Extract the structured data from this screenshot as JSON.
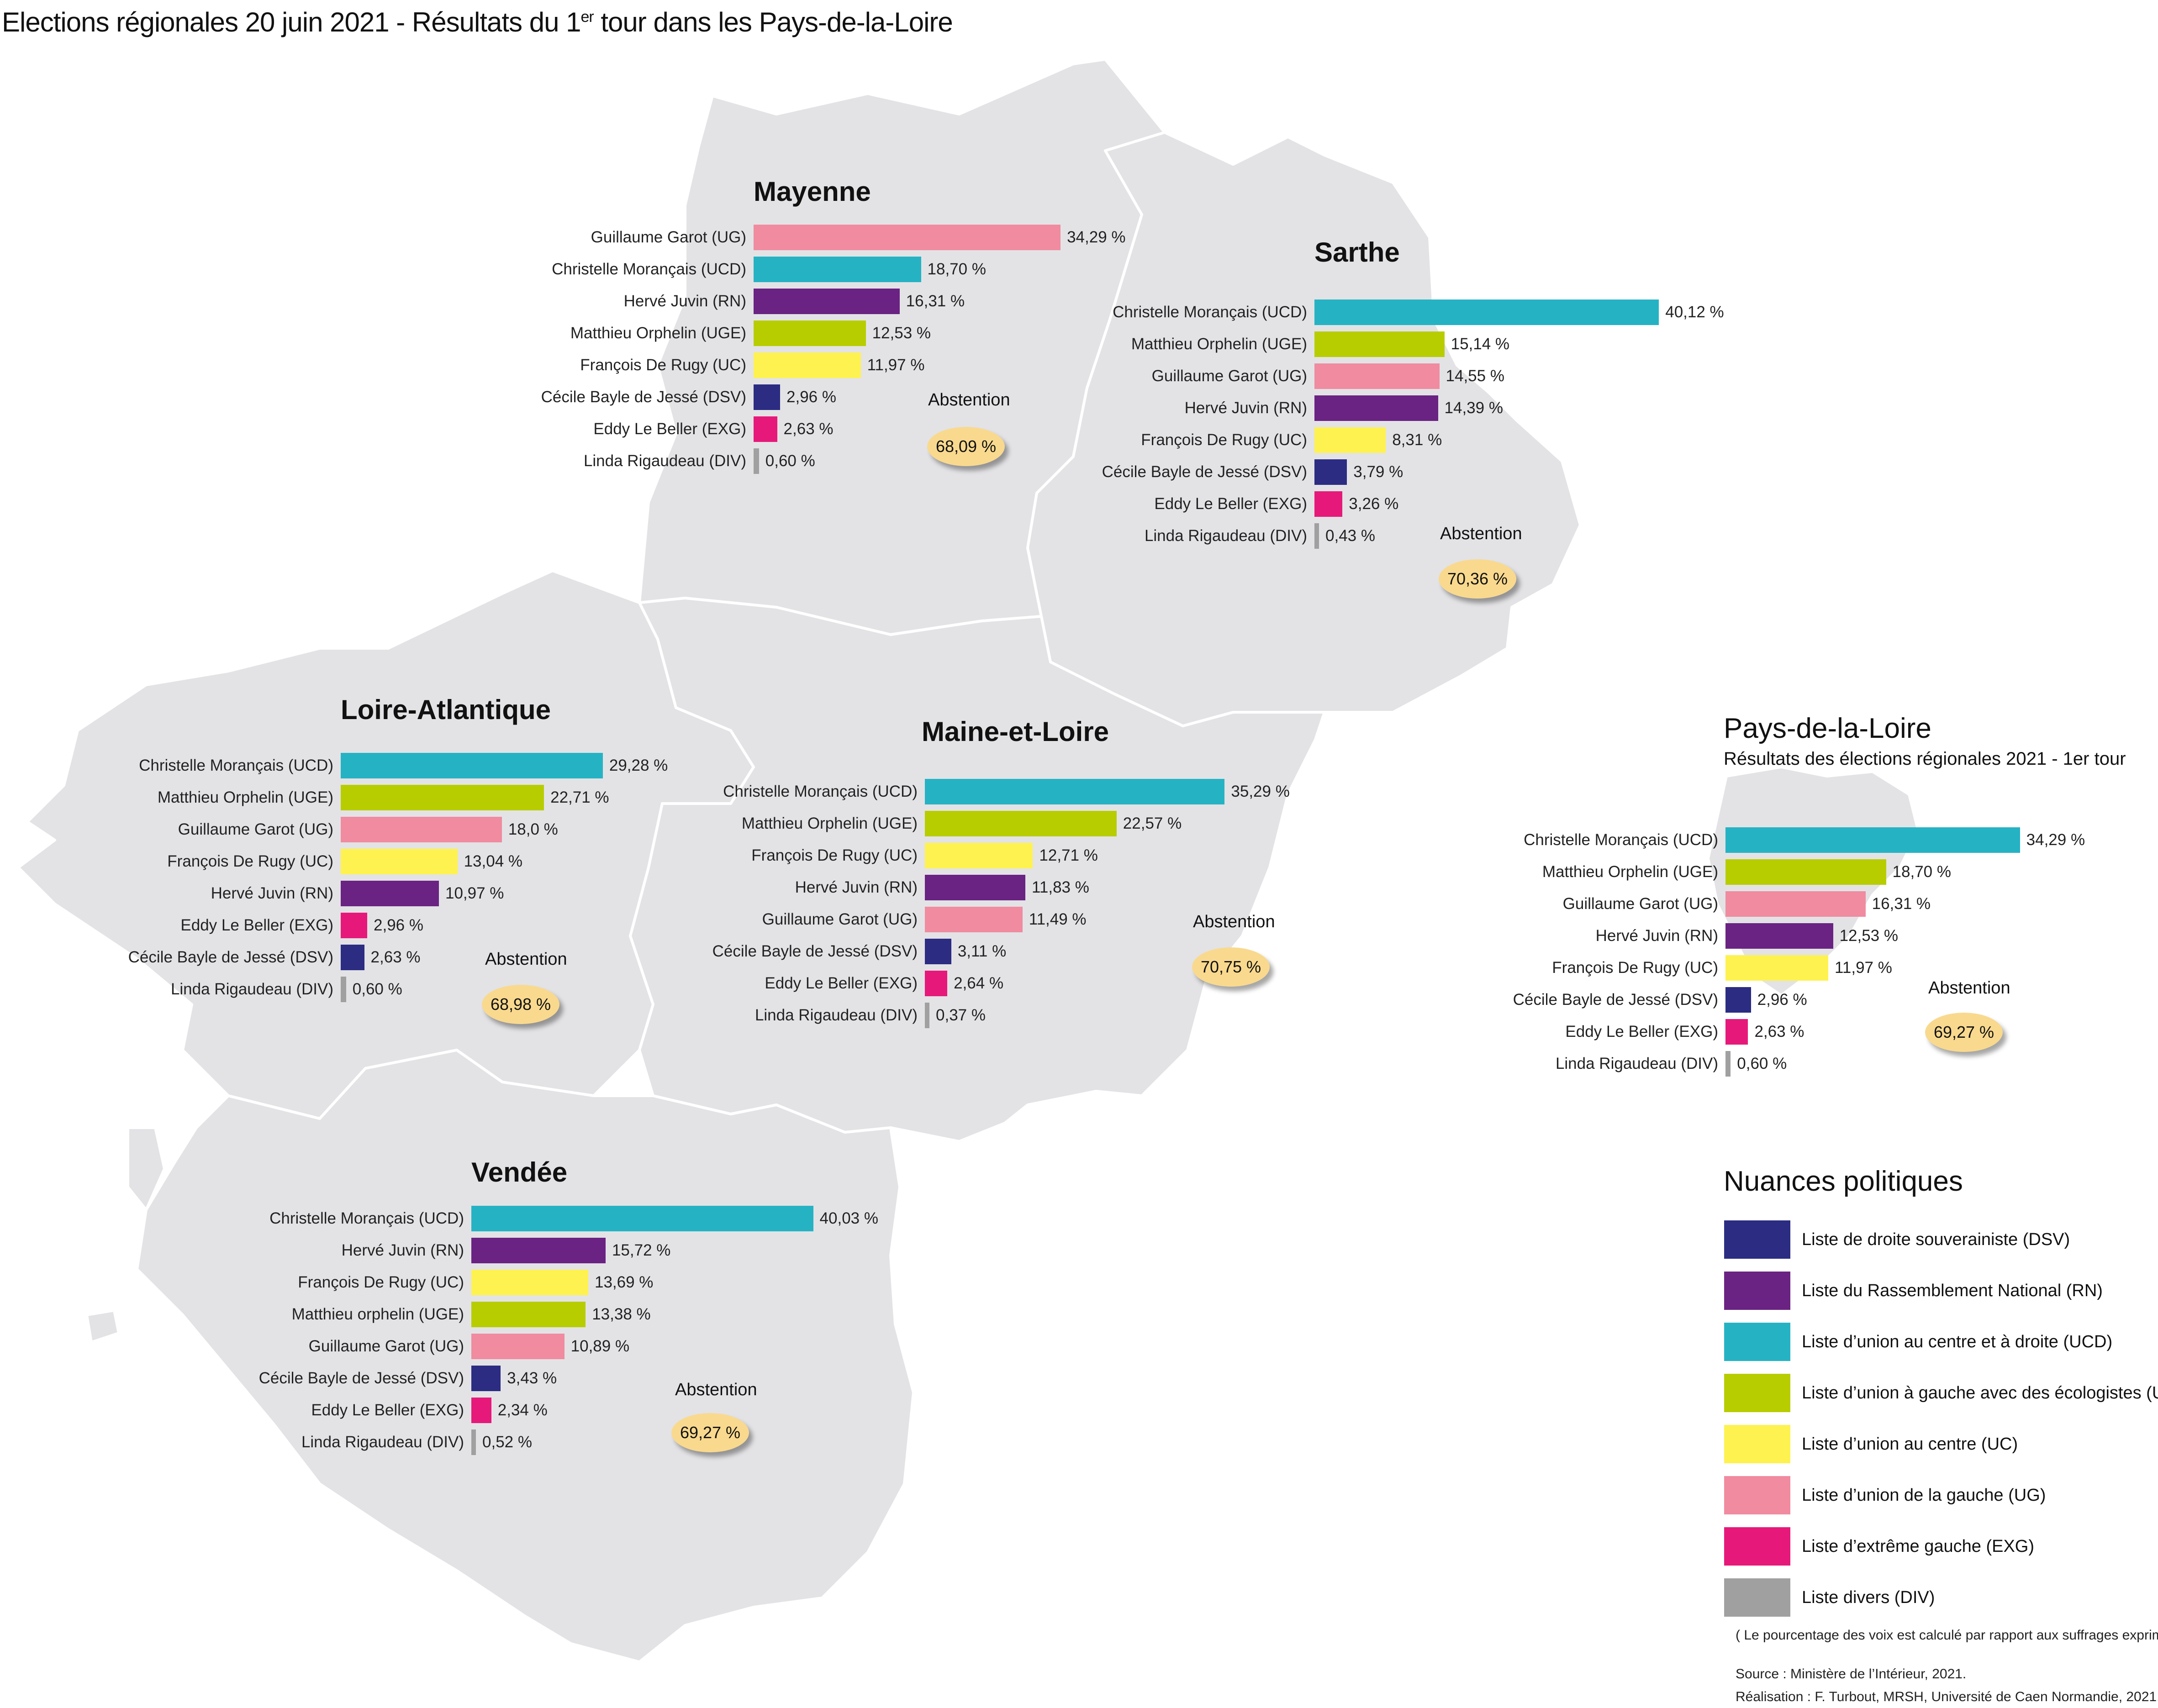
{
  "title_main": "Elections régionales 20 juin 2021 - Résultats du 1",
  "title_sup": "er",
  "title_rest": " tour dans les Pays-de-la-Loire",
  "colors": {
    "DSV": "#2b2c82",
    "RN": "#6a2382",
    "UCD": "#25b3c4",
    "UGE": "#b7cd00",
    "UC": "#fef250",
    "UG": "#f08ba0",
    "EXG": "#e6197a",
    "DIV": "#a0a0a0",
    "map_fill": "#e3e3e6",
    "map_stroke": "#ffffff",
    "abstention_badge": "#f9d98e"
  },
  "chart_data": [
    {
      "type": "bar",
      "title": "Mayenne",
      "categories": [
        "Guillaume Garot (UG)",
        "Christelle Morançais (UCD)",
        "Hervé Juvin (RN)",
        "Matthieu Orphelin (UGE)",
        "François De Rugy (UC)",
        "Cécile Bayle de Jessé (DSV)",
        "Eddy Le Beller (EXG)",
        "Linda Rigaudeau (DIV)"
      ],
      "nuances": [
        "UG",
        "UCD",
        "RN",
        "UGE",
        "UC",
        "DSV",
        "EXG",
        "DIV"
      ],
      "values": [
        34.29,
        18.7,
        16.31,
        12.53,
        11.97,
        2.96,
        2.63,
        0.6
      ],
      "value_labels": [
        "34,29 %",
        "18,70 %",
        "16,31 %",
        "12,53 %",
        "11,97 %",
        "2,96 %",
        "2,63 %",
        "0,60 %"
      ],
      "abstention_label": "Abstention",
      "abstention": "68,09 %"
    },
    {
      "type": "bar",
      "title": "Sarthe",
      "categories": [
        "Christelle Morançais (UCD)",
        "Matthieu Orphelin (UGE)",
        "Guillaume Garot (UG)",
        "Hervé Juvin (RN)",
        "François De Rugy (UC)",
        "Cécile Bayle de Jessé (DSV)",
        "Eddy Le Beller (EXG)",
        "Linda Rigaudeau (DIV)"
      ],
      "nuances": [
        "UCD",
        "UGE",
        "UG",
        "RN",
        "UC",
        "DSV",
        "EXG",
        "DIV"
      ],
      "values": [
        40.12,
        15.14,
        14.55,
        14.39,
        8.31,
        3.79,
        3.26,
        0.43
      ],
      "value_labels": [
        "40,12 %",
        "15,14 %",
        "14,55 %",
        "14,39 %",
        "8,31 %",
        "3,79 %",
        "3,26 %",
        "0,43 %"
      ],
      "abstention_label": "Abstention",
      "abstention": "70,36 %"
    },
    {
      "type": "bar",
      "title": "Loire-Atlantique",
      "categories": [
        "Christelle Morançais (UCD)",
        "Matthieu Orphelin (UGE)",
        "Guillaume Garot (UG)",
        "François De Rugy (UC)",
        "Hervé Juvin (RN)",
        "Eddy  Le Beller (EXG)",
        "Cécile Bayle de Jessé (DSV)",
        "Linda Rigaudeau (DIV)"
      ],
      "nuances": [
        "UCD",
        "UGE",
        "UG",
        "UC",
        "RN",
        "EXG",
        "DSV",
        "DIV"
      ],
      "values": [
        29.28,
        22.71,
        18.0,
        13.04,
        10.97,
        2.96,
        2.63,
        0.6
      ],
      "value_labels": [
        "29,28 %",
        "22,71 %",
        "18,0 %",
        "13,04 %",
        "10,97 %",
        "2,96 %",
        "2,63 %",
        "0,60 %"
      ],
      "abstention_label": "Abstention",
      "abstention": "68,98 %"
    },
    {
      "type": "bar",
      "title": "Maine-et-Loire",
      "categories": [
        "Christelle Morançais (UCD)",
        "Matthieu Orphelin (UGE)",
        "François De Rugy (UC)",
        "Hervé Juvin (RN)",
        "Guillaume Garot (UG)",
        "Cécile Bayle de Jessé (DSV)",
        "Eddy Le Beller (EXG)",
        "Linda Rigaudeau (DIV)"
      ],
      "nuances": [
        "UCD",
        "UGE",
        "UC",
        "RN",
        "UG",
        "DSV",
        "EXG",
        "DIV"
      ],
      "values": [
        35.29,
        22.57,
        12.71,
        11.83,
        11.49,
        3.11,
        2.64,
        0.37
      ],
      "value_labels": [
        "35,29 %",
        "22,57 %",
        "12,71 %",
        "11,83 %",
        "11,49 %",
        "3,11 %",
        "2,64 %",
        "0,37 %"
      ],
      "abstention_label": "Abstention",
      "abstention": "70,75 %"
    },
    {
      "type": "bar",
      "title": "Vendée",
      "categories": [
        "Christelle Morançais (UCD)",
        "Hervé Juvin (RN)",
        "François De Rugy (UC)",
        "Matthieu orphelin (UGE)",
        "Guillaume Garot (UG)",
        "Cécile Bayle de Jessé (DSV)",
        "Eddy Le Beller (EXG)",
        "Linda Rigaudeau (DIV)"
      ],
      "nuances": [
        "UCD",
        "RN",
        "UC",
        "UGE",
        "UG",
        "DSV",
        "EXG",
        "DIV"
      ],
      "values": [
        40.03,
        15.72,
        13.69,
        13.38,
        10.89,
        3.43,
        2.34,
        0.52
      ],
      "value_labels": [
        "40,03 %",
        "15,72 %",
        "13,69 %",
        "13,38 %",
        "10,89 %",
        "3,43 %",
        "2,34 %",
        "0,52 %"
      ],
      "abstention_label": "Abstention",
      "abstention": "69,27 %"
    },
    {
      "type": "bar",
      "title": "Pays-de-la-Loire",
      "subtitle": "Résultats des élections régionales 2021 - 1er tour",
      "categories": [
        "Christelle Morançais (UCD)",
        "Matthieu Orphelin (UGE)",
        "Guillaume Garot (UG)",
        "Hervé Juvin (RN)",
        "François De Rugy (UC)",
        "Cécile Bayle de Jessé (DSV)",
        "Eddy Le Beller (EXG)",
        "Linda Rigaudeau (DIV)"
      ],
      "nuances": [
        "UCD",
        "UGE",
        "UG",
        "RN",
        "UC",
        "DSV",
        "EXG",
        "DIV"
      ],
      "values": [
        34.29,
        18.7,
        16.31,
        12.53,
        11.97,
        2.96,
        2.63,
        0.6
      ],
      "value_labels": [
        "34,29 %",
        "18,70 %",
        "16,31 %",
        "12,53 %",
        "11,97 %",
        "2,96 %",
        "2,63 %",
        "0,60 %"
      ],
      "abstention_label": "Abstention",
      "abstention": "69,27 %"
    }
  ],
  "legend": {
    "title": "Nuances politiques",
    "items": [
      {
        "key": "DSV",
        "label": "Liste de droite souverainiste (DSV)"
      },
      {
        "key": "RN",
        "label": " Liste du Rassemblement National (RN)"
      },
      {
        "key": "UCD",
        "label": "Liste d’union au centre et à droite (UCD)"
      },
      {
        "key": "UGE",
        "label": "Liste d’union à gauche avec des écologistes (UGE)"
      },
      {
        "key": "UC",
        "label": "Liste d’union au centre (UC)"
      },
      {
        "key": "UG",
        "label": "Liste d’union de la gauche (UG)"
      },
      {
        "key": "EXG",
        "label": "Liste d’extrême gauche (EXG)"
      },
      {
        "key": "DIV",
        "label": "Liste divers (DIV)"
      }
    ]
  },
  "footer": {
    "note": "( Le pourcentage des voix est calculé par rapport aux suffrages exprimés )",
    "source": "Source : Ministère de l’Intérieur, 2021.",
    "credit": "Réalisation : F. Turbout, MRSH, Université de Caen Normandie, 2021."
  }
}
